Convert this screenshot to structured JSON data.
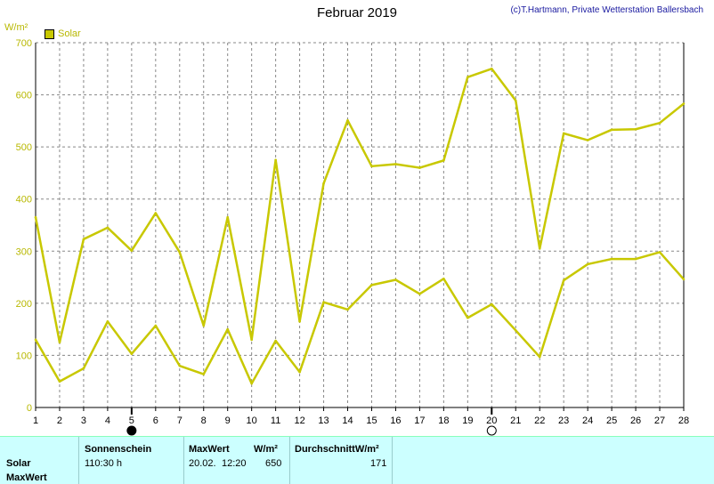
{
  "title": "Februar 2019",
  "copyright": "(c)T.Hartmann, Private Wetterstation Ballersbach",
  "unit": "W/m²",
  "legend_label": "Solar",
  "colors": {
    "series": "#c8c800",
    "axis_text": "#b8b800",
    "grid": "#888888",
    "panel": "#ccffff"
  },
  "chart_data": {
    "type": "line",
    "title": "Februar 2019",
    "ylabel": "W/m²",
    "ylim": [
      0,
      700
    ],
    "yticks": [
      0,
      100,
      200,
      300,
      400,
      500,
      600,
      700
    ],
    "x": [
      1,
      2,
      3,
      4,
      5,
      6,
      7,
      8,
      9,
      10,
      11,
      12,
      13,
      14,
      15,
      16,
      17,
      18,
      19,
      20,
      21,
      22,
      23,
      24,
      25,
      26,
      27,
      28
    ],
    "grid": true,
    "legend": "top-left",
    "series": [
      {
        "name": "Solar",
        "values": [
          365,
          125,
          323,
          345,
          301,
          373,
          298,
          157,
          365,
          130,
          475,
          165,
          430,
          551,
          463,
          467,
          460,
          474,
          634,
          650,
          589,
          305,
          526,
          513,
          533,
          534,
          546,
          583
        ]
      },
      {
        "name": "Solar",
        "values": [
          130,
          50,
          75,
          165,
          103,
          157,
          80,
          64,
          150,
          46,
          128,
          68,
          202,
          188,
          235,
          245,
          218,
          247,
          172,
          198,
          148,
          97,
          244,
          275,
          285,
          285,
          298,
          246
        ]
      }
    ],
    "moon_markers": [
      {
        "day": 5,
        "phase": "new-moon"
      },
      {
        "day": 20,
        "phase": "full-moon"
      }
    ]
  },
  "stats": {
    "row_label_1": "Solar",
    "row_label_2": "MaxWert",
    "sunshine_header": "Sonnenschein",
    "sunshine_value": "110:30 h",
    "max_header": "MaxWert",
    "max_unit": "W/m²",
    "max_date": "20.02.",
    "max_time": "12:20",
    "max_value": "650",
    "avg_header": "DurchschnittW/m²",
    "avg_value": "171"
  }
}
